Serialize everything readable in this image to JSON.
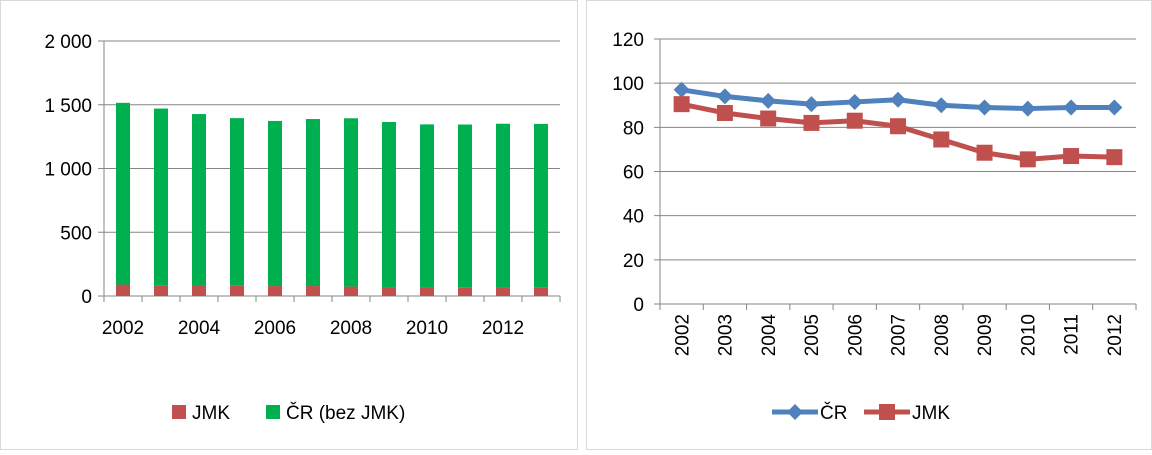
{
  "chart_data": [
    {
      "type": "bar",
      "stacked": true,
      "title": "",
      "xlabel": "",
      "ylabel": "",
      "categories": [
        "2002",
        "2003",
        "2004",
        "2005",
        "2006",
        "2007",
        "2008",
        "2009",
        "2010",
        "2011",
        "2012",
        "2013"
      ],
      "x_tick_labels": [
        "2002",
        "2004",
        "2006",
        "2008",
        "2010",
        "2012"
      ],
      "y_tick_labels": [
        "0",
        "500",
        "1 000",
        "1 500",
        "2 000"
      ],
      "ylim": [
        0,
        2000
      ],
      "grid": true,
      "legend_position": "bottom",
      "series": [
        {
          "name": "JMK",
          "color": "#c0504d",
          "values": [
            90,
            85,
            82,
            80,
            78,
            78,
            74,
            70,
            66,
            65,
            66,
            65
          ]
        },
        {
          "name": "ČR (bez JMK)",
          "color": "#00b050",
          "values": [
            1425,
            1385,
            1345,
            1315,
            1295,
            1310,
            1320,
            1295,
            1280,
            1280,
            1285,
            1285
          ]
        }
      ]
    },
    {
      "type": "line",
      "title": "",
      "xlabel": "",
      "ylabel": "",
      "x": [
        "2002",
        "2003",
        "2004",
        "2005",
        "2006",
        "2007",
        "2008",
        "2009",
        "2010",
        "2011",
        "2012"
      ],
      "y_tick_labels": [
        "0",
        "20",
        "40",
        "60",
        "80",
        "100",
        "120"
      ],
      "ylim": [
        0,
        120
      ],
      "grid": true,
      "legend_position": "bottom",
      "series": [
        {
          "name": "ČR",
          "color": "#4f81bd",
          "marker": "diamond",
          "values": [
            97,
            94,
            92,
            90.5,
            91.5,
            92.5,
            90,
            89,
            88.5,
            89,
            89
          ]
        },
        {
          "name": "JMK",
          "color": "#c0504d",
          "marker": "square",
          "values": [
            90.5,
            86.5,
            84,
            82,
            83,
            80.5,
            74.5,
            68.5,
            65.5,
            67,
            66.5
          ]
        }
      ]
    }
  ]
}
